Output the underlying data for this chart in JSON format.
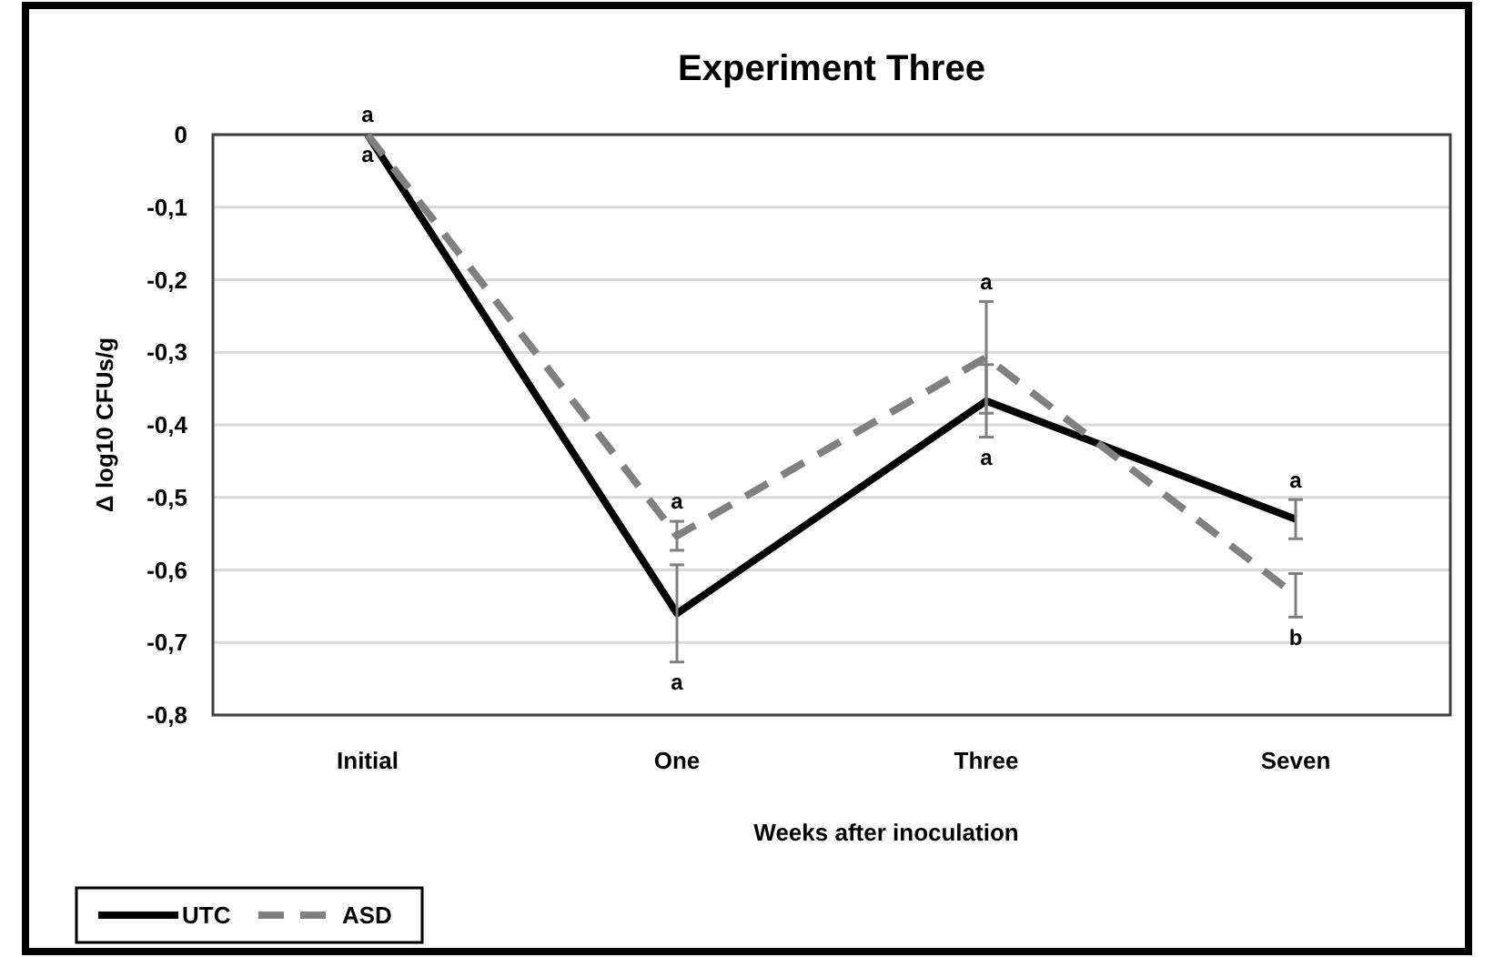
{
  "chart_data": {
    "type": "line",
    "title": "Experiment Three",
    "xlabel": "Weeks after inoculation",
    "ylabel": "Δ log10 CFUs/g",
    "categories": [
      "Initial",
      "One",
      "Three",
      "Seven"
    ],
    "series": [
      {
        "name": "UTC",
        "color": "#000000",
        "line_style": "solid",
        "values": [
          0,
          -0.66,
          -0.367,
          -0.53
        ],
        "errors": [
          null,
          0.067,
          0.05,
          0.027
        ],
        "value_labels": [
          "a",
          "a",
          "a",
          "a"
        ]
      },
      {
        "name": "ASD",
        "color": "#808080",
        "line_style": "dashed",
        "values": [
          0,
          -0.553,
          -0.307,
          -0.635
        ],
        "errors": [
          null,
          0.02,
          0.077,
          0.03
        ],
        "value_labels": [
          "a",
          "a",
          "a",
          "b"
        ]
      }
    ],
    "ylim": [
      -0.8,
      0
    ],
    "yticks": [
      {
        "value": 0,
        "label": "0"
      },
      {
        "value": -0.1,
        "label": "-0,1"
      },
      {
        "value": -0.2,
        "label": "-0,2"
      },
      {
        "value": -0.3,
        "label": "-0,3"
      },
      {
        "value": -0.4,
        "label": "-0,4"
      },
      {
        "value": -0.5,
        "label": "-0,5"
      },
      {
        "value": -0.6,
        "label": "-0,6"
      },
      {
        "value": -0.7,
        "label": "-0,7"
      },
      {
        "value": -0.8,
        "label": "-0,8"
      }
    ],
    "grid": "y",
    "legend": "bottom left",
    "marker": "none"
  }
}
